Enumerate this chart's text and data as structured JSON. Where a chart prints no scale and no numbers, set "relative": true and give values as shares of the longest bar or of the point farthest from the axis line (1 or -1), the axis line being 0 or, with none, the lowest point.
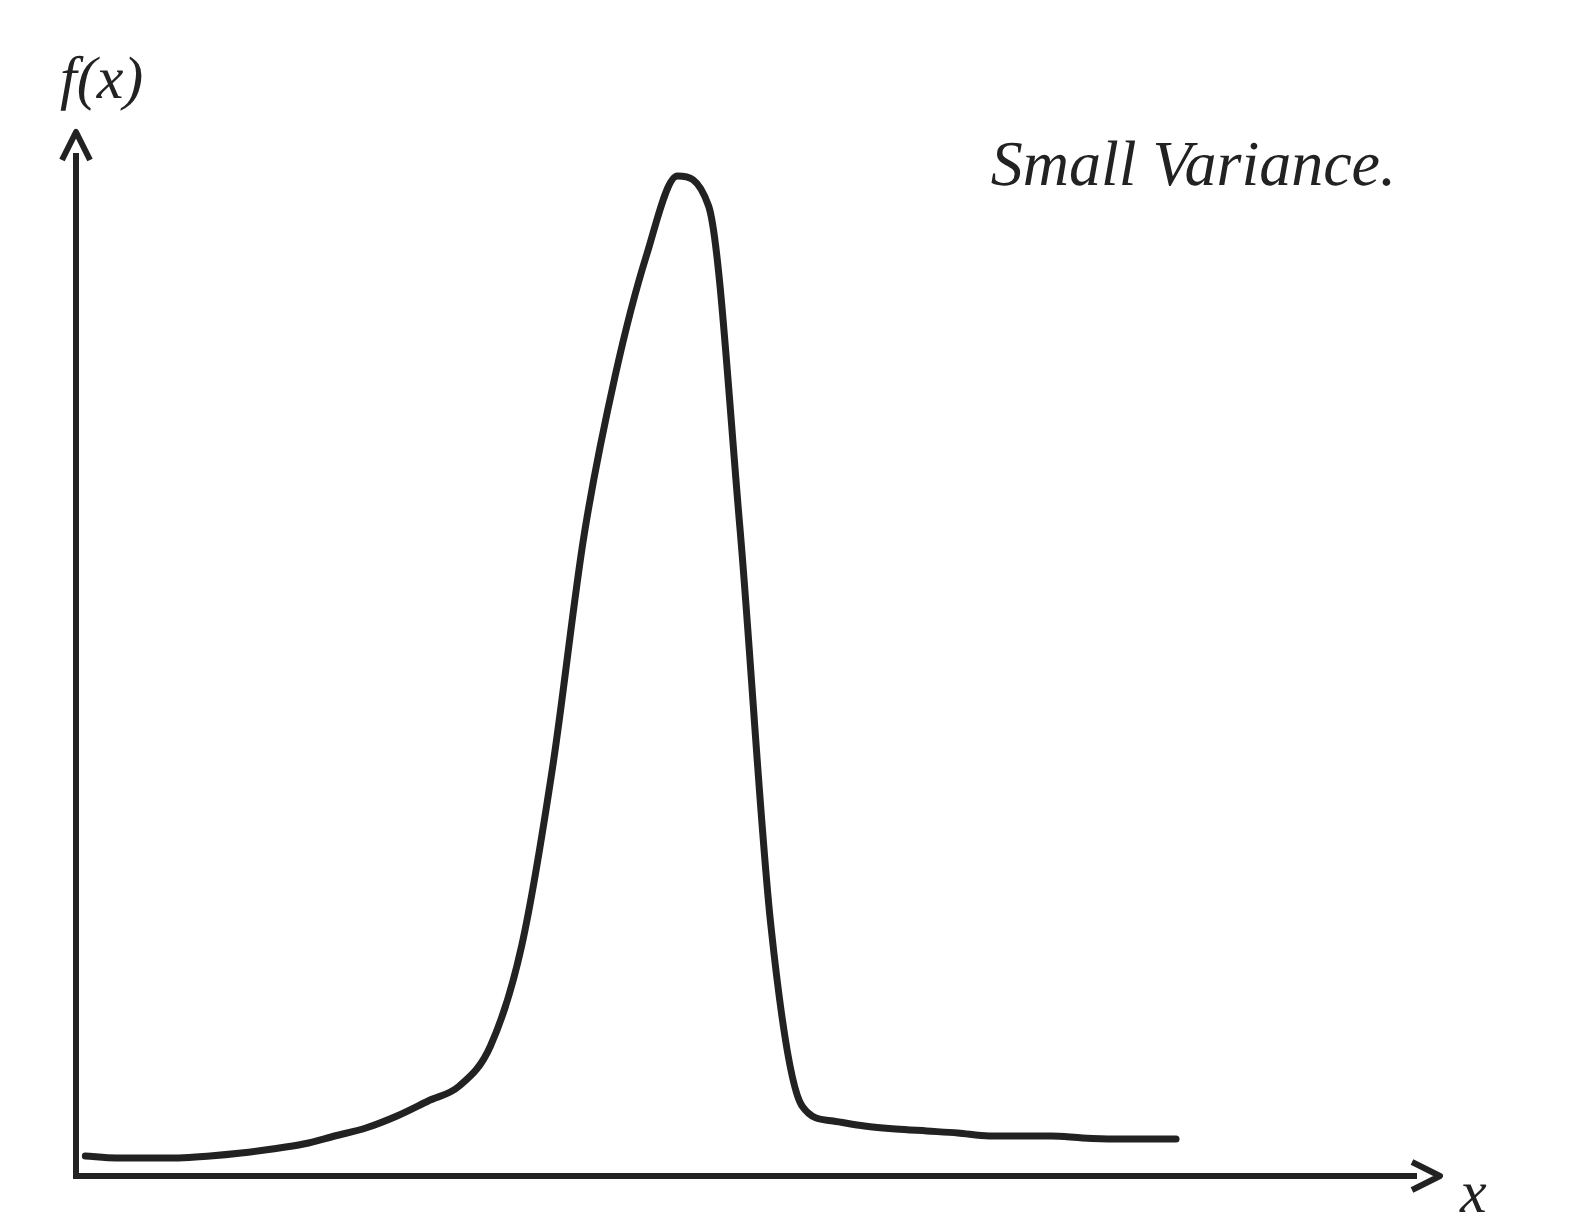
{
  "chart_data": {
    "type": "line",
    "relative": true,
    "title": "Small Variance.",
    "xlabel": "x",
    "ylabel": "f(x)",
    "color": "#222222",
    "marker": "none",
    "line_style": "solid",
    "grid": false,
    "legend": false,
    "categories": [
      null,
      null,
      null,
      null,
      null,
      null,
      null,
      null,
      null,
      null,
      null,
      null,
      null,
      null,
      null,
      null,
      null,
      null,
      null,
      null,
      null,
      null,
      null,
      null,
      null,
      null,
      null,
      null,
      null,
      null,
      null,
      null,
      null,
      null,
      null,
      null
    ],
    "values": [
      0.02,
      0.018,
      0.018,
      0.018,
      0.02,
      0.023,
      0.027,
      0.032,
      0.04,
      0.048,
      0.06,
      0.075,
      0.09,
      0.13,
      0.23,
      0.41,
      0.64,
      0.8,
      0.92,
      1,
      0.97,
      0.65,
      0.25,
      0.07,
      0.055,
      0.05,
      0.047,
      0.045,
      0.043,
      0.04,
      0.04,
      0.04,
      0.038,
      0.037,
      0.037,
      0.037
    ]
  }
}
